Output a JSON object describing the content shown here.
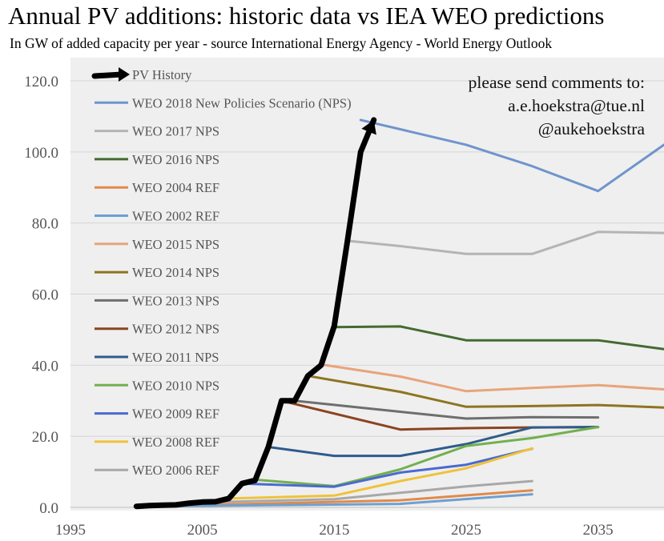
{
  "page": {
    "title": "Annual PV additions: historic data vs IEA WEO predictions",
    "subtitle": "In GW of added capacity per year - source International Energy Agency - World Energy Outlook"
  },
  "chart_data": {
    "type": "line",
    "title": "Annual PV additions: historic data vs IEA WEO predictions",
    "subtitle": "In GW of added capacity per year - source International Energy Agency - World Energy Outlook",
    "xlabel": "",
    "ylabel": "",
    "xlim": [
      1995,
      2040
    ],
    "ylim": [
      0,
      120
    ],
    "x_ticks": [
      "1995",
      "2005",
      "2015",
      "2025",
      "2035"
    ],
    "x_tick_values": [
      1995,
      2005,
      2015,
      2025,
      2035
    ],
    "y_ticks": [
      "0.0",
      "20.0",
      "40.0",
      "60.0",
      "80.0",
      "100.0",
      "120.0"
    ],
    "y_tick_values": [
      0,
      20,
      40,
      60,
      80,
      100,
      120
    ],
    "grid": "horizontal",
    "legend_position": "top-left",
    "annotation": [
      "please send comments to:",
      "a.e.hoekstra@tue.nl",
      "@aukehoekstra"
    ],
    "series": [
      {
        "name": "PV History",
        "color": "#000000",
        "style": "history-arrow",
        "x": [
          2000,
          2001,
          2002,
          2003,
          2004,
          2005,
          2006,
          2007,
          2008,
          2009,
          2010,
          2011,
          2012,
          2013,
          2014,
          2015,
          2016,
          2017,
          2018
        ],
        "y": [
          0.3,
          0.5,
          0.6,
          0.7,
          1.2,
          1.5,
          1.6,
          2.5,
          6.7,
          7.6,
          17,
          30,
          30,
          37,
          40,
          51,
          75,
          100,
          109
        ]
      },
      {
        "name": "WEO 2018 New Policies Scenario (NPS)",
        "color": "#7094cc",
        "x": [
          2017,
          2025,
          2030,
          2035,
          2040
        ],
        "y": [
          109,
          102,
          96,
          89,
          102
        ]
      },
      {
        "name": "WEO 2017 NPS",
        "color": "#b4b4b4",
        "x": [
          2016,
          2020,
          2025,
          2030,
          2035,
          2040
        ],
        "y": [
          75,
          73.5,
          71.3,
          71.3,
          77.5,
          77.2
        ]
      },
      {
        "name": "WEO 2016 NPS",
        "color": "#446a31",
        "x": [
          2015,
          2020,
          2025,
          2030,
          2035,
          2040
        ],
        "y": [
          50.7,
          50.9,
          47,
          47,
          47,
          44.5
        ]
      },
      {
        "name": "WEO 2004 REF",
        "color": "#e08a4a",
        "x": [
          2002,
          2010,
          2020,
          2030
        ],
        "y": [
          0.5,
          1.1,
          2,
          4.8
        ]
      },
      {
        "name": "WEO 2002 REF",
        "color": "#6f9fd0",
        "x": [
          2000,
          2010,
          2020,
          2030
        ],
        "y": [
          0.3,
          0.6,
          1,
          3.7
        ]
      },
      {
        "name": "WEO 2015 NPS",
        "color": "#e8a47a",
        "x": [
          2014,
          2020,
          2025,
          2030,
          2035,
          2040
        ],
        "y": [
          40.2,
          36.8,
          32.7,
          33.6,
          34.4,
          33.2
        ]
      },
      {
        "name": "WEO 2014 NPS",
        "color": "#8e7420",
        "x": [
          2013,
          2020,
          2025,
          2030,
          2035,
          2040
        ],
        "y": [
          37,
          32.5,
          28.3,
          28.5,
          28.8,
          28.1
        ]
      },
      {
        "name": "WEO 2013 NPS",
        "color": "#6e6e6e",
        "x": [
          2012,
          2020,
          2025,
          2030,
          2035
        ],
        "y": [
          30,
          26.9,
          25,
          25.4,
          25.3
        ]
      },
      {
        "name": "WEO 2012 NPS",
        "color": "#8b4420",
        "x": [
          2011,
          2020,
          2025,
          2030,
          2035
        ],
        "y": [
          30,
          21.9,
          22.3,
          22.5,
          22.6
        ]
      },
      {
        "name": "WEO 2011 NPS",
        "color": "#2f5b8c",
        "x": [
          2010,
          2015,
          2020,
          2025,
          2030,
          2035
        ],
        "y": [
          17,
          14.5,
          14.5,
          17.8,
          22.5,
          22.6
        ]
      },
      {
        "name": "WEO 2010 NPS",
        "color": "#72b04e",
        "x": [
          2009,
          2015,
          2020,
          2025,
          2030,
          2035
        ],
        "y": [
          7.8,
          6,
          10.7,
          17.3,
          19.5,
          22.6
        ]
      },
      {
        "name": "WEO 2009 REF",
        "color": "#4a6ad0",
        "x": [
          2008,
          2015,
          2020,
          2025,
          2030
        ],
        "y": [
          6.7,
          5.8,
          9.8,
          12,
          16.5
        ]
      },
      {
        "name": "WEO 2008 REF",
        "color": "#f0c23a",
        "x": [
          2007,
          2015,
          2020,
          2025,
          2030
        ],
        "y": [
          2.5,
          3.3,
          7.4,
          11,
          16.6
        ]
      },
      {
        "name": "WEO 2006 REF",
        "color": "#a8a8a8",
        "x": [
          2005,
          2015,
          2020,
          2025,
          2030
        ],
        "y": [
          1.4,
          2.3,
          4.1,
          5.9,
          7.4
        ]
      }
    ]
  }
}
